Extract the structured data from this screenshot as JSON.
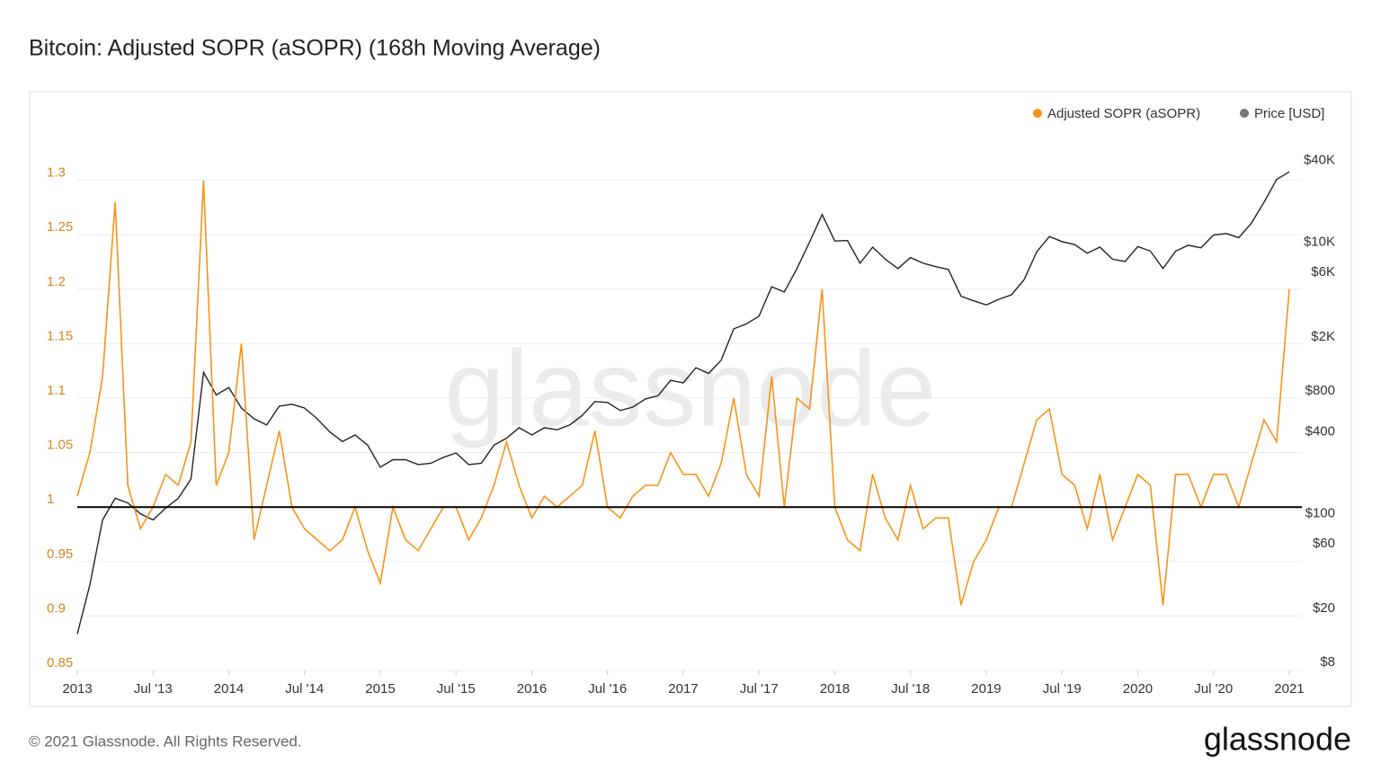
{
  "chart_data": {
    "type": "line",
    "title": "Bitcoin: Adjusted SOPR (aSOPR) (168h Moving Average)",
    "x": [
      "2013-01",
      "2013-02",
      "2013-03",
      "2013-04",
      "2013-05",
      "2013-06",
      "2013-07",
      "2013-08",
      "2013-09",
      "2013-10",
      "2013-11",
      "2013-12",
      "2014-01",
      "2014-02",
      "2014-03",
      "2014-04",
      "2014-05",
      "2014-06",
      "2014-07",
      "2014-08",
      "2014-09",
      "2014-10",
      "2014-11",
      "2014-12",
      "2015-01",
      "2015-02",
      "2015-03",
      "2015-04",
      "2015-05",
      "2015-06",
      "2015-07",
      "2015-08",
      "2015-09",
      "2015-10",
      "2015-11",
      "2015-12",
      "2016-01",
      "2016-02",
      "2016-03",
      "2016-04",
      "2016-05",
      "2016-06",
      "2016-07",
      "2016-08",
      "2016-09",
      "2016-10",
      "2016-11",
      "2016-12",
      "2017-01",
      "2017-02",
      "2017-03",
      "2017-04",
      "2017-05",
      "2017-06",
      "2017-07",
      "2017-08",
      "2017-09",
      "2017-10",
      "2017-11",
      "2017-12",
      "2018-01",
      "2018-02",
      "2018-03",
      "2018-04",
      "2018-05",
      "2018-06",
      "2018-07",
      "2018-08",
      "2018-09",
      "2018-10",
      "2018-11",
      "2018-12",
      "2019-01",
      "2019-02",
      "2019-03",
      "2019-04",
      "2019-05",
      "2019-06",
      "2019-07",
      "2019-08",
      "2019-09",
      "2019-10",
      "2019-11",
      "2019-12",
      "2020-01",
      "2020-02",
      "2020-03",
      "2020-04",
      "2020-05",
      "2020-06",
      "2020-07",
      "2020-08",
      "2020-09",
      "2020-10",
      "2020-11",
      "2020-12",
      "2021-01"
    ],
    "series": [
      {
        "name": "Adjusted SOPR (aSOPR)",
        "color": "#f7931a",
        "axis": "y",
        "values": [
          1.01,
          1.05,
          1.12,
          1.28,
          1.02,
          0.98,
          1.0,
          1.03,
          1.02,
          1.06,
          1.3,
          1.02,
          1.05,
          1.15,
          0.97,
          1.02,
          1.07,
          1.0,
          0.98,
          0.97,
          0.96,
          0.97,
          1.0,
          0.96,
          0.93,
          1.0,
          0.97,
          0.96,
          0.98,
          1.0,
          1.0,
          0.97,
          0.99,
          1.02,
          1.06,
          1.02,
          0.99,
          1.01,
          1.0,
          1.01,
          1.02,
          1.07,
          1.0,
          0.99,
          1.01,
          1.02,
          1.02,
          1.05,
          1.03,
          1.03,
          1.01,
          1.04,
          1.1,
          1.03,
          1.01,
          1.12,
          1.0,
          1.1,
          1.09,
          1.2,
          1.0,
          0.97,
          0.96,
          1.03,
          0.99,
          0.97,
          1.02,
          0.98,
          0.99,
          0.99,
          0.91,
          0.95,
          0.97,
          1.0,
          1.0,
          1.04,
          1.08,
          1.09,
          1.03,
          1.02,
          0.98,
          1.03,
          0.97,
          1.0,
          1.03,
          1.02,
          0.91,
          1.03,
          1.03,
          1.0,
          1.03,
          1.03,
          1.0,
          1.04,
          1.08,
          1.06,
          1.2
        ]
      },
      {
        "name": "Price [USD]",
        "color": "#222222",
        "legend_color": "#777777",
        "axis": "y2",
        "values": [
          13,
          30,
          90,
          130,
          120,
          100,
          90,
          110,
          130,
          180,
          1100,
          750,
          850,
          600,
          500,
          450,
          620,
          640,
          600,
          500,
          400,
          340,
          380,
          320,
          220,
          250,
          250,
          230,
          235,
          260,
          280,
          230,
          235,
          320,
          360,
          430,
          380,
          430,
          415,
          450,
          530,
          670,
          660,
          575,
          610,
          700,
          740,
          960,
          920,
          1190,
          1080,
          1350,
          2300,
          2500,
          2850,
          4700,
          4300,
          6400,
          10000,
          16000,
          10200,
          10300,
          7000,
          9200,
          7500,
          6400,
          7700,
          7000,
          6600,
          6300,
          4000,
          3700,
          3450,
          3800,
          4100,
          5300,
          8500,
          11000,
          10100,
          9600,
          8300,
          9200,
          7500,
          7200,
          9300,
          8600,
          6400,
          8600,
          9500,
          9100,
          11300,
          11600,
          10800,
          13800,
          19700,
          29000,
          33000
        ]
      }
    ],
    "xlim": [
      "2013-01",
      "2021-02"
    ],
    "xticks": [
      {
        "value": "2013-01",
        "label": "2013"
      },
      {
        "value": "2013-07",
        "label": "Jul '13"
      },
      {
        "value": "2014-01",
        "label": "2014"
      },
      {
        "value": "2014-07",
        "label": "Jul '14"
      },
      {
        "value": "2015-01",
        "label": "2015"
      },
      {
        "value": "2015-07",
        "label": "Jul '15"
      },
      {
        "value": "2016-01",
        "label": "2016"
      },
      {
        "value": "2016-07",
        "label": "Jul '16"
      },
      {
        "value": "2017-01",
        "label": "2017"
      },
      {
        "value": "2017-07",
        "label": "Jul '17"
      },
      {
        "value": "2018-01",
        "label": "2018"
      },
      {
        "value": "2018-07",
        "label": "Jul '18"
      },
      {
        "value": "2019-01",
        "label": "2019"
      },
      {
        "value": "2019-07",
        "label": "Jul '19"
      },
      {
        "value": "2020-01",
        "label": "2020"
      },
      {
        "value": "2020-07",
        "label": "Jul '20"
      },
      {
        "value": "2021-01",
        "label": "2021"
      }
    ],
    "ylim": [
      0.85,
      1.35
    ],
    "yticks": [
      0.85,
      0.9,
      0.95,
      1,
      1.05,
      1.1,
      1.15,
      1.2,
      1.25,
      1.3
    ],
    "y2lim": [
      7,
      72000
    ],
    "y2log": true,
    "y2ticks": [
      {
        "value": 8,
        "label": "$8"
      },
      {
        "value": 20,
        "label": "$20"
      },
      {
        "value": 60,
        "label": "$60"
      },
      {
        "value": 100,
        "label": "$100"
      },
      {
        "value": 400,
        "label": "$400"
      },
      {
        "value": 800,
        "label": "$800"
      },
      {
        "value": 2000,
        "label": "$2K"
      },
      {
        "value": 6000,
        "label": "$6K"
      },
      {
        "value": 10000,
        "label": "$10K"
      },
      {
        "value": 40000,
        "label": "$40K"
      }
    ],
    "baseline": 1,
    "grid": true,
    "legend": "top-right"
  },
  "watermark": "glassnode",
  "footer": "© 2021 Glassnode. All Rights Reserved.",
  "brand": "glassnode"
}
